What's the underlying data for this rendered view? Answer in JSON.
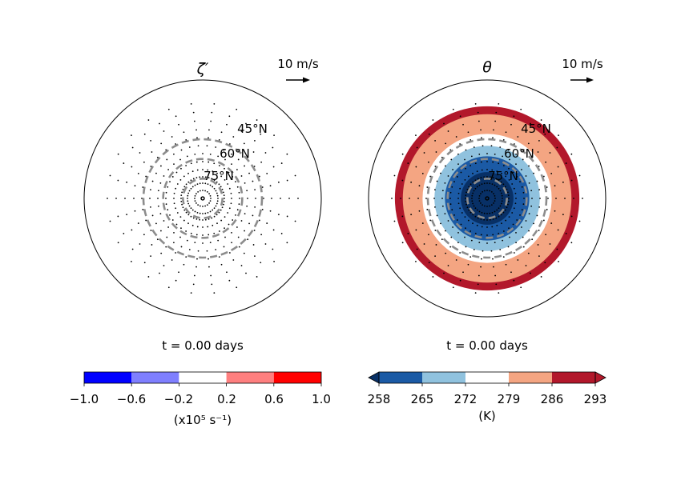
{
  "chart_data": [
    {
      "type": "polar-map",
      "title": "ζ′",
      "time_label": "t = 0.00 days",
      "arrow_label": "10 m/s",
      "latitude_labels": [
        "45°N",
        "60°N",
        "75°N"
      ],
      "dashed_circle_latitudes": [
        45,
        60,
        75
      ],
      "colorbar": {
        "label": "(x10⁵ s⁻¹)",
        "ticks": [
          "−1.0",
          "−0.6",
          "−0.2",
          "0.2",
          "0.6",
          "1.0"
        ],
        "colors": [
          "#0000ff",
          "#7f7ffe",
          "#ffffff",
          "#fe7f7f",
          "#ff0000"
        ],
        "extend": "neither"
      },
      "filled_rings": []
    },
    {
      "type": "polar-map",
      "title": "θ",
      "time_label": "t = 0.00 days",
      "arrow_label": "10 m/s",
      "latitude_labels": [
        "45°N",
        "60°N",
        "75°N"
      ],
      "dashed_circle_latitudes": [
        45,
        60,
        75
      ],
      "colorbar": {
        "label": "(K)",
        "ticks": [
          "258",
          "265",
          "272",
          "279",
          "286",
          "293"
        ],
        "colors": [
          "#1b5aa5",
          "#90c2de",
          "#ffffff",
          "#f4a582",
          "#b2182b"
        ],
        "extend": "both",
        "extend_colors": [
          "#083066",
          "#b2182b"
        ]
      },
      "filled_rings": [
        {
          "outer_lat": 20,
          "color": "#b2182b"
        },
        {
          "outer_lat": 26,
          "color": "#f4a582"
        },
        {
          "outer_lat": 41,
          "color": "#ffffff"
        },
        {
          "outer_lat": 50,
          "color": "#90c2de"
        },
        {
          "outer_lat": 58,
          "color": "#1b5aa5"
        },
        {
          "outer_lat": 70,
          "color": "#083066"
        }
      ]
    }
  ]
}
